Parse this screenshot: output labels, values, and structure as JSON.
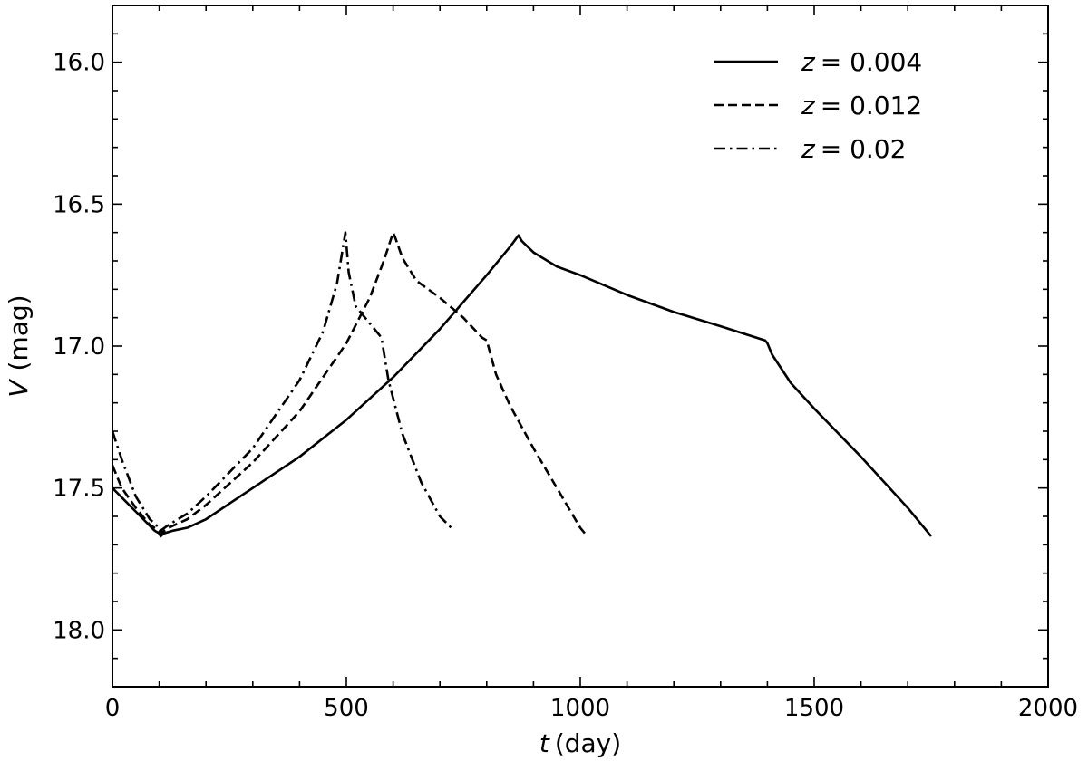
{
  "chart_data": {
    "type": "line",
    "title": "",
    "xlabel": {
      "symbol": "t",
      "unit": "(day)"
    },
    "ylabel": {
      "symbol": "V",
      "unit": "(mag)"
    },
    "xlim": [
      0,
      2000
    ],
    "ylim": [
      18.2,
      15.8
    ],
    "y_inverted": true,
    "x_ticks": [
      0,
      500,
      1000,
      1500,
      2000
    ],
    "x_tick_labels": [
      "0",
      "500",
      "1000",
      "1500",
      "2000"
    ],
    "x_minor_step": 100,
    "y_ticks": [
      16.0,
      16.5,
      17.0,
      17.5,
      18.0
    ],
    "y_tick_labels": [
      "16.0",
      "16.5",
      "17.0",
      "17.5",
      "18.0"
    ],
    "y_minor_step": 0.1,
    "grid": false,
    "legend_position": "top-right",
    "series": [
      {
        "name": "z = 0.004",
        "legend_var": "z",
        "legend_value": "= 0.004",
        "style": "solid",
        "x": [
          0,
          30,
          60,
          90,
          100,
          103,
          110,
          130,
          160,
          200,
          300,
          400,
          500,
          600,
          700,
          800,
          850,
          868,
          875,
          900,
          950,
          1000,
          1100,
          1200,
          1300,
          1395,
          1400,
          1410,
          1450,
          1500,
          1600,
          1700,
          1750
        ],
        "y": [
          17.5,
          17.55,
          17.6,
          17.65,
          17.66,
          17.67,
          17.66,
          17.65,
          17.64,
          17.61,
          17.5,
          17.39,
          17.26,
          17.11,
          16.94,
          16.75,
          16.65,
          16.61,
          16.63,
          16.67,
          16.72,
          16.75,
          16.82,
          16.88,
          16.93,
          16.98,
          16.99,
          17.03,
          17.13,
          17.22,
          17.39,
          17.57,
          17.67
        ]
      },
      {
        "name": "z = 0.012",
        "legend_var": "z",
        "legend_value": "= 0.012",
        "style": "dashed",
        "x": [
          0,
          20,
          50,
          80,
          100,
          103,
          120,
          160,
          200,
          300,
          400,
          500,
          550,
          580,
          600,
          605,
          620,
          650,
          700,
          750,
          790,
          800,
          820,
          850,
          900,
          950,
          1000,
          1010
        ],
        "y": [
          17.42,
          17.5,
          17.57,
          17.63,
          17.65,
          17.66,
          17.64,
          17.61,
          17.56,
          17.41,
          17.23,
          16.99,
          16.83,
          16.7,
          16.6,
          16.62,
          16.69,
          16.77,
          16.83,
          16.9,
          16.97,
          16.98,
          17.1,
          17.21,
          17.36,
          17.5,
          17.64,
          17.66
        ]
      },
      {
        "name": "z = 0.02",
        "legend_var": "z",
        "legend_value": "= 0.02",
        "style": "dashdot",
        "x": [
          0,
          20,
          50,
          80,
          100,
          103,
          120,
          160,
          200,
          300,
          400,
          450,
          480,
          498,
          505,
          520,
          540,
          570,
          575,
          590,
          620,
          660,
          700,
          730
        ],
        "y": [
          17.3,
          17.4,
          17.53,
          17.61,
          17.64,
          17.65,
          17.63,
          17.59,
          17.53,
          17.36,
          17.12,
          16.95,
          16.78,
          16.6,
          16.74,
          16.86,
          16.9,
          16.96,
          16.97,
          17.12,
          17.31,
          17.48,
          17.6,
          17.65
        ]
      }
    ]
  }
}
